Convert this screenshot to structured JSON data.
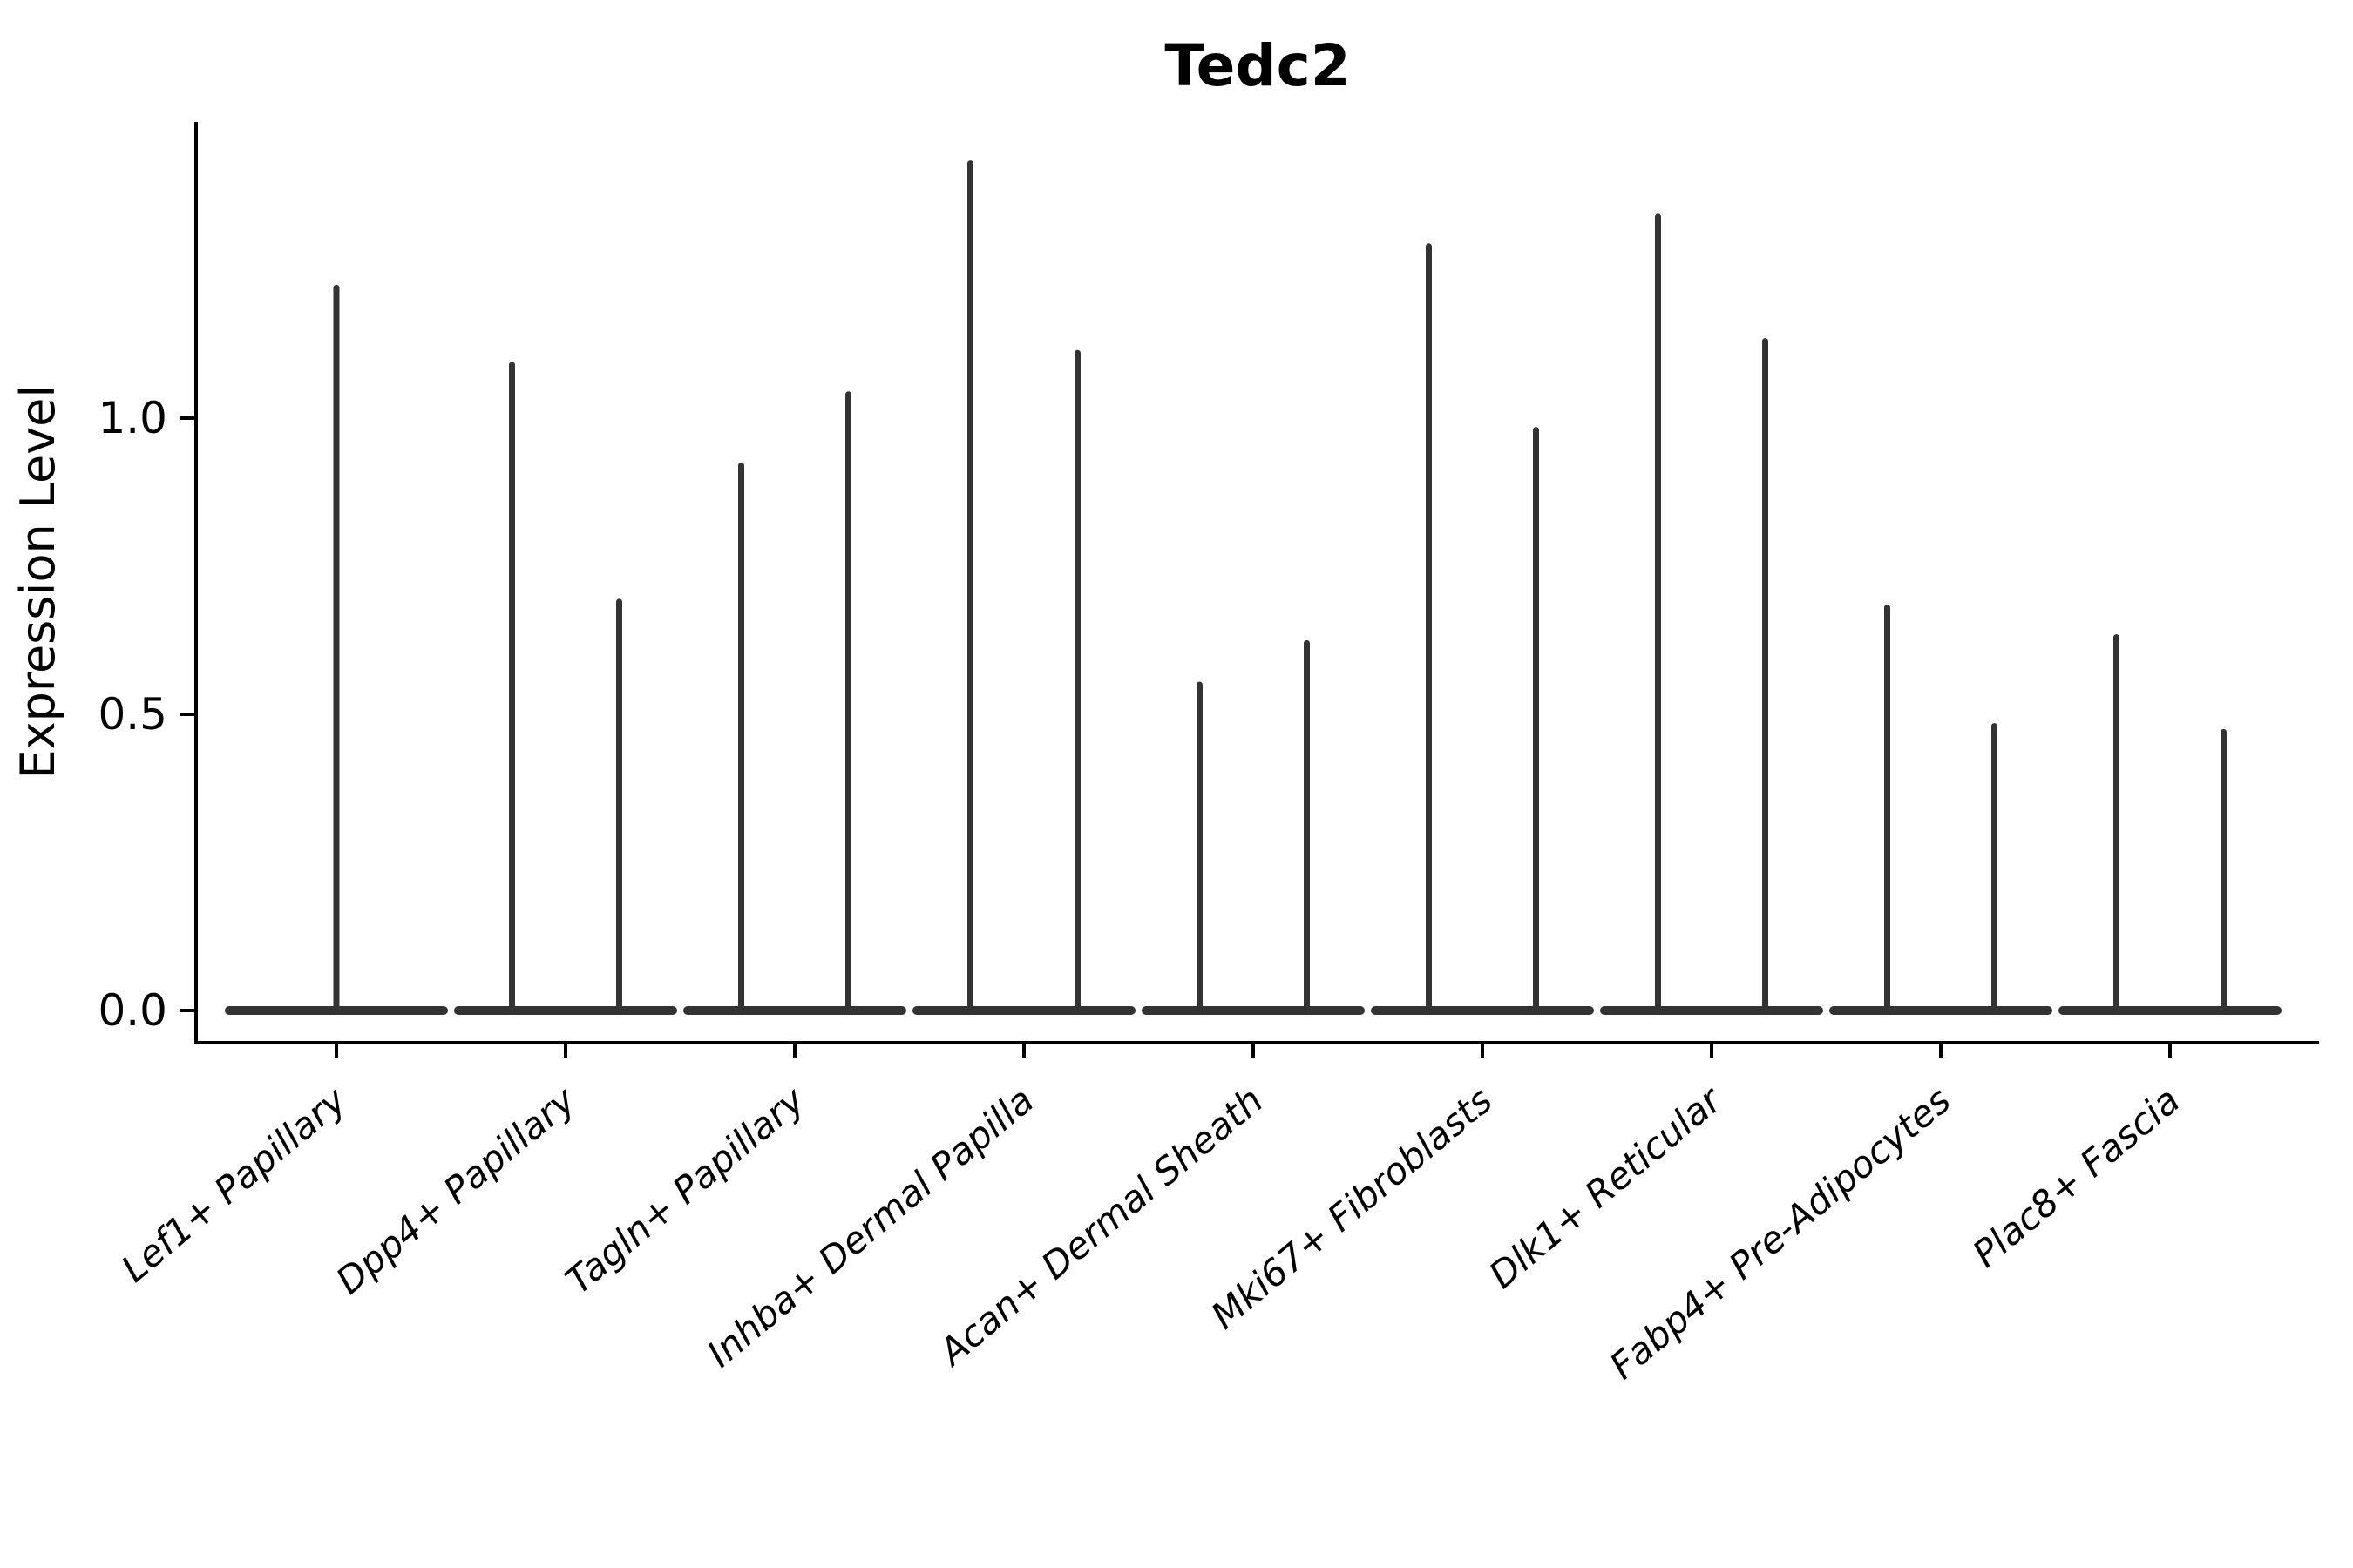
{
  "title": "Tedc2",
  "y_axis": {
    "label": "Expression Level",
    "tick_labels": [
      "0.0",
      "0.5",
      "1.0"
    ]
  },
  "chart_data": {
    "type": "violin",
    "title": "Tedc2",
    "xlabel": "",
    "ylabel": "Expression Level",
    "ylim": [
      0,
      1.5
    ],
    "yticks": [
      0.0,
      0.5,
      1.0
    ],
    "ytick_labels": [
      "0.0",
      "0.5",
      "1.0"
    ],
    "grid": false,
    "legend": "none",
    "categories": [
      "Lef1+ Papillary",
      "Dpp4+ Papillary",
      "Tagln+ Papillary",
      "Inhba+ Dermal Papilla",
      "Acan+ Dermal Sheath",
      "Mki67+ Fibroblasts",
      "Dlk1+ Reticular",
      "Fabp4+ Pre-Adipocytes",
      "Plac8+ Fascia"
    ],
    "groups": [
      {
        "category": "Lef1+ Papillary",
        "violin_maxima": [
          1.22
        ]
      },
      {
        "category": "Dpp4+ Papillary",
        "violin_maxima": [
          1.09,
          0.69
        ]
      },
      {
        "category": "Tagln+ Papillary",
        "violin_maxima": [
          0.92,
          1.04
        ]
      },
      {
        "category": "Inhba+ Dermal Papilla",
        "violin_maxima": [
          1.43,
          1.11
        ]
      },
      {
        "category": "Acan+ Dermal Sheath",
        "violin_maxima": [
          0.55,
          0.62
        ]
      },
      {
        "category": "Mki67+ Fibroblasts",
        "violin_maxima": [
          1.29,
          0.98
        ]
      },
      {
        "category": "Dlk1+ Reticular",
        "violin_maxima": [
          1.34,
          1.13
        ]
      },
      {
        "category": "Fabp4+ Pre-Adipocytes",
        "violin_maxima": [
          0.68,
          0.48
        ]
      },
      {
        "category": "Plac8+ Fascia",
        "violin_maxima": [
          0.63,
          0.47
        ]
      }
    ],
    "colors": {
      "violin": "#333333",
      "axis": "#000000",
      "background": "#ffffff"
    }
  }
}
